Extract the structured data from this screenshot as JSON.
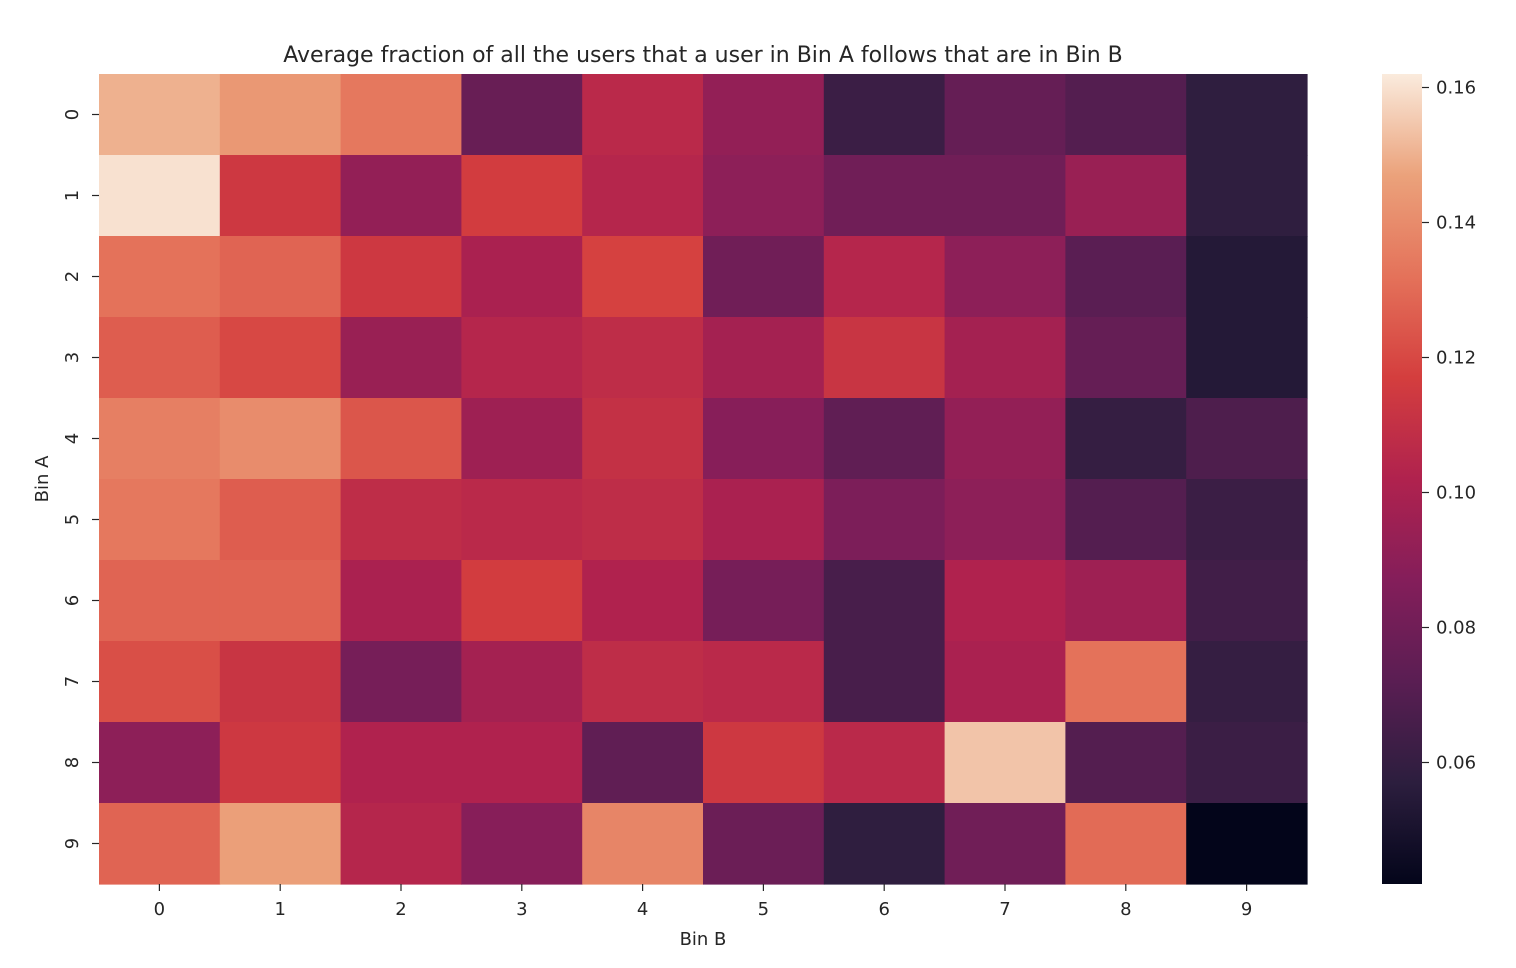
{
  "chart_data": {
    "type": "heatmap",
    "title": "Average fraction of all the users that a user in Bin A follows that are in Bin B",
    "xlabel": "Bin B",
    "ylabel": "Bin A",
    "x_categories": [
      "0",
      "1",
      "2",
      "3",
      "4",
      "5",
      "6",
      "7",
      "8",
      "9"
    ],
    "y_categories": [
      "0",
      "1",
      "2",
      "3",
      "4",
      "5",
      "6",
      "7",
      "8",
      "9"
    ],
    "colorbar": {
      "range": [
        0.042,
        0.162
      ],
      "ticks": [
        0.06,
        0.08,
        0.1,
        0.12,
        0.14,
        0.16
      ],
      "tick_labels": [
        "0.06",
        "0.08",
        "0.10",
        "0.12",
        "0.14",
        "0.16"
      ],
      "colormap": "rocket"
    },
    "values": [
      [
        0.15,
        0.144,
        0.134,
        0.077,
        0.106,
        0.092,
        0.062,
        0.076,
        0.07,
        0.058
      ],
      [
        0.16,
        0.114,
        0.092,
        0.116,
        0.104,
        0.09,
        0.08,
        0.08,
        0.094,
        0.058
      ],
      [
        0.132,
        0.128,
        0.114,
        0.1,
        0.118,
        0.08,
        0.104,
        0.09,
        0.072,
        0.054
      ],
      [
        0.126,
        0.12,
        0.094,
        0.104,
        0.108,
        0.098,
        0.112,
        0.098,
        0.076,
        0.054
      ],
      [
        0.136,
        0.14,
        0.124,
        0.096,
        0.11,
        0.088,
        0.074,
        0.092,
        0.06,
        0.068
      ],
      [
        0.134,
        0.126,
        0.108,
        0.106,
        0.108,
        0.1,
        0.084,
        0.09,
        0.07,
        0.062
      ],
      [
        0.128,
        0.128,
        0.1,
        0.116,
        0.102,
        0.082,
        0.066,
        0.102,
        0.096,
        0.064
      ],
      [
        0.122,
        0.112,
        0.082,
        0.098,
        0.108,
        0.106,
        0.066,
        0.1,
        0.132,
        0.06
      ],
      [
        0.09,
        0.114,
        0.102,
        0.102,
        0.074,
        0.114,
        0.106,
        0.154,
        0.07,
        0.062
      ],
      [
        0.128,
        0.146,
        0.104,
        0.088,
        0.138,
        0.078,
        0.058,
        0.08,
        0.13,
        0.042
      ]
    ]
  }
}
